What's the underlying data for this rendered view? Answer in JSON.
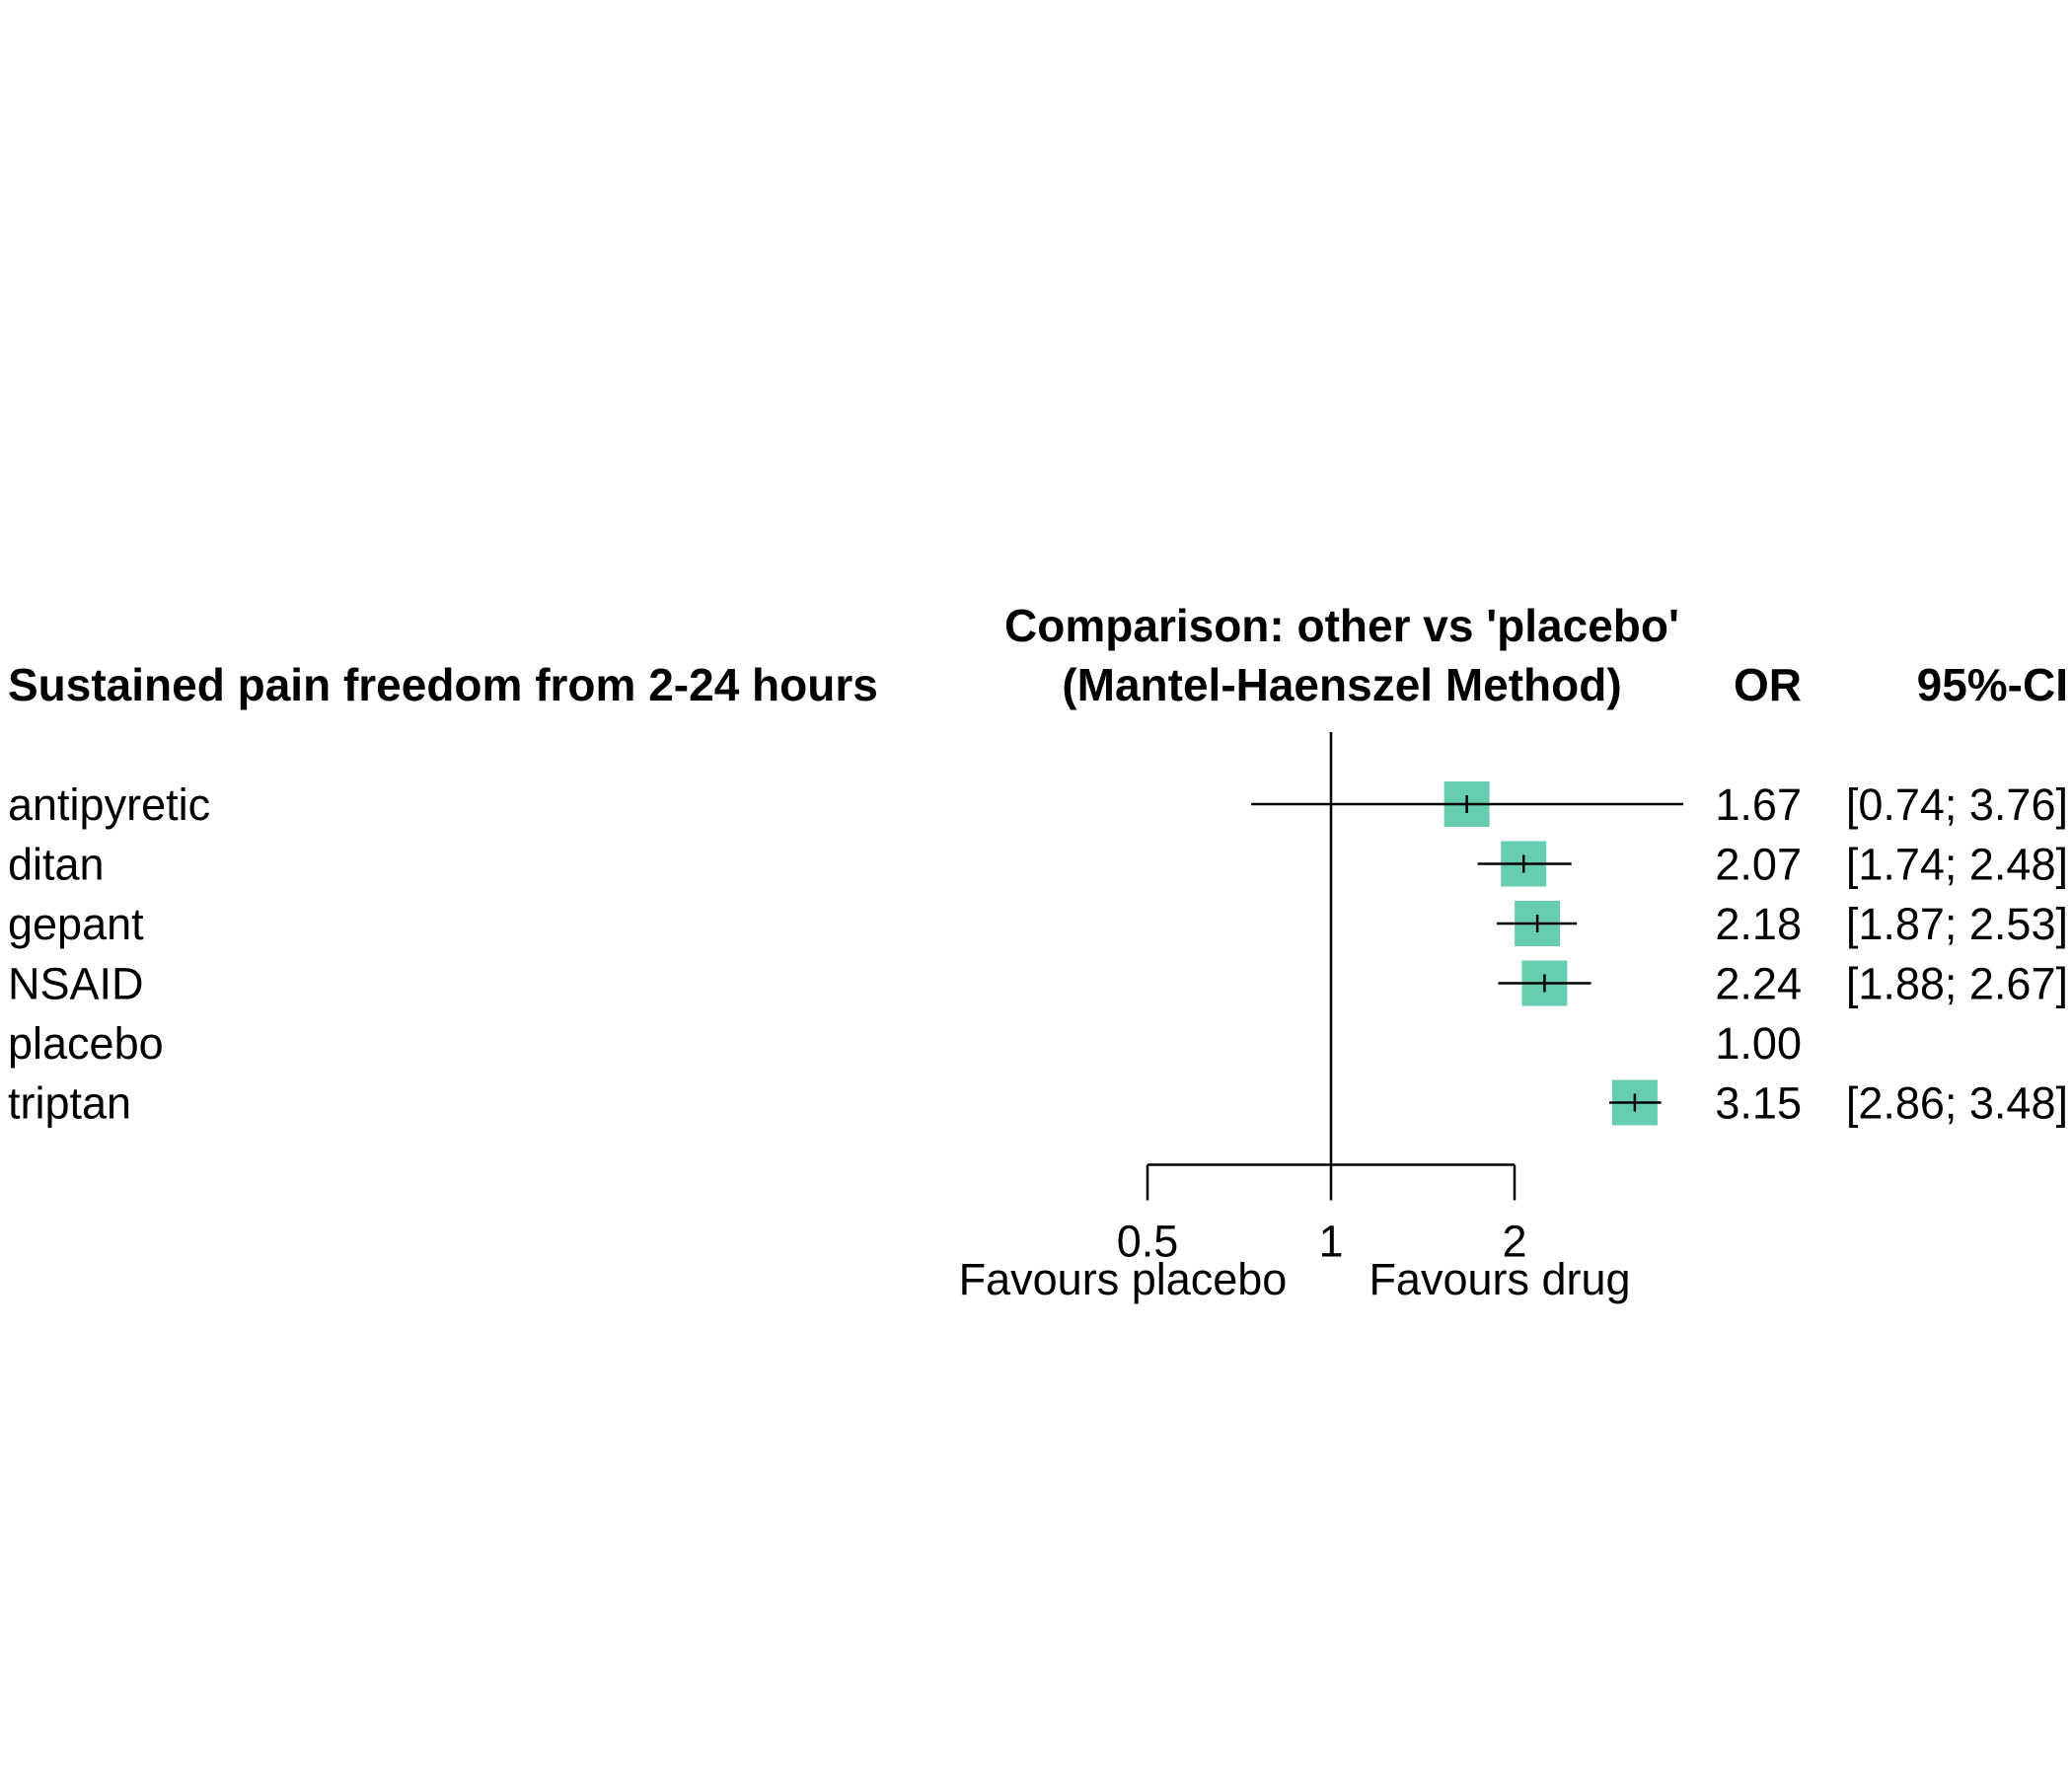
{
  "chart_data": {
    "type": "forest",
    "title_left": "Sustained pain freedom from 2-24 hours",
    "comparison_line1": "Comparison: other vs 'placebo'",
    "comparison_line2": "(Mantel-Haenszel Method)",
    "col_or": "OR",
    "col_ci": "95%-CI",
    "scale": "log",
    "reference_value": 1,
    "ticks": [
      {
        "label": "0.5",
        "value": 0.5
      },
      {
        "label": "1",
        "value": 1
      },
      {
        "label": "2",
        "value": 2
      }
    ],
    "favours_left": "Favours placebo",
    "favours_right": "Favours drug",
    "marker_color": "#66CDB0",
    "rows": [
      {
        "label": "antipyretic",
        "or": 1.67,
        "lo": 0.74,
        "hi": 3.76,
        "or_text": "1.67",
        "ci_text": "[0.74; 3.76]",
        "weight": 1.0,
        "clip_right": true
      },
      {
        "label": "ditan",
        "or": 2.07,
        "lo": 1.74,
        "hi": 2.48,
        "or_text": "2.07",
        "ci_text": "[1.74; 2.48]",
        "weight": 1.0
      },
      {
        "label": "gepant",
        "or": 2.18,
        "lo": 1.87,
        "hi": 2.53,
        "or_text": "2.18",
        "ci_text": "[1.87; 2.53]",
        "weight": 1.0
      },
      {
        "label": "NSAID",
        "or": 2.24,
        "lo": 1.88,
        "hi": 2.67,
        "or_text": "2.24",
        "ci_text": "[1.88; 2.67]",
        "weight": 1.0
      },
      {
        "label": "placebo",
        "or": 1.0,
        "lo": null,
        "hi": null,
        "or_text": "1.00",
        "ci_text": "",
        "weight": 0
      },
      {
        "label": "triptan",
        "or": 3.15,
        "lo": 2.86,
        "hi": 3.48,
        "or_text": "3.15",
        "ci_text": "[2.86; 3.48]",
        "weight": 1.0
      }
    ]
  }
}
